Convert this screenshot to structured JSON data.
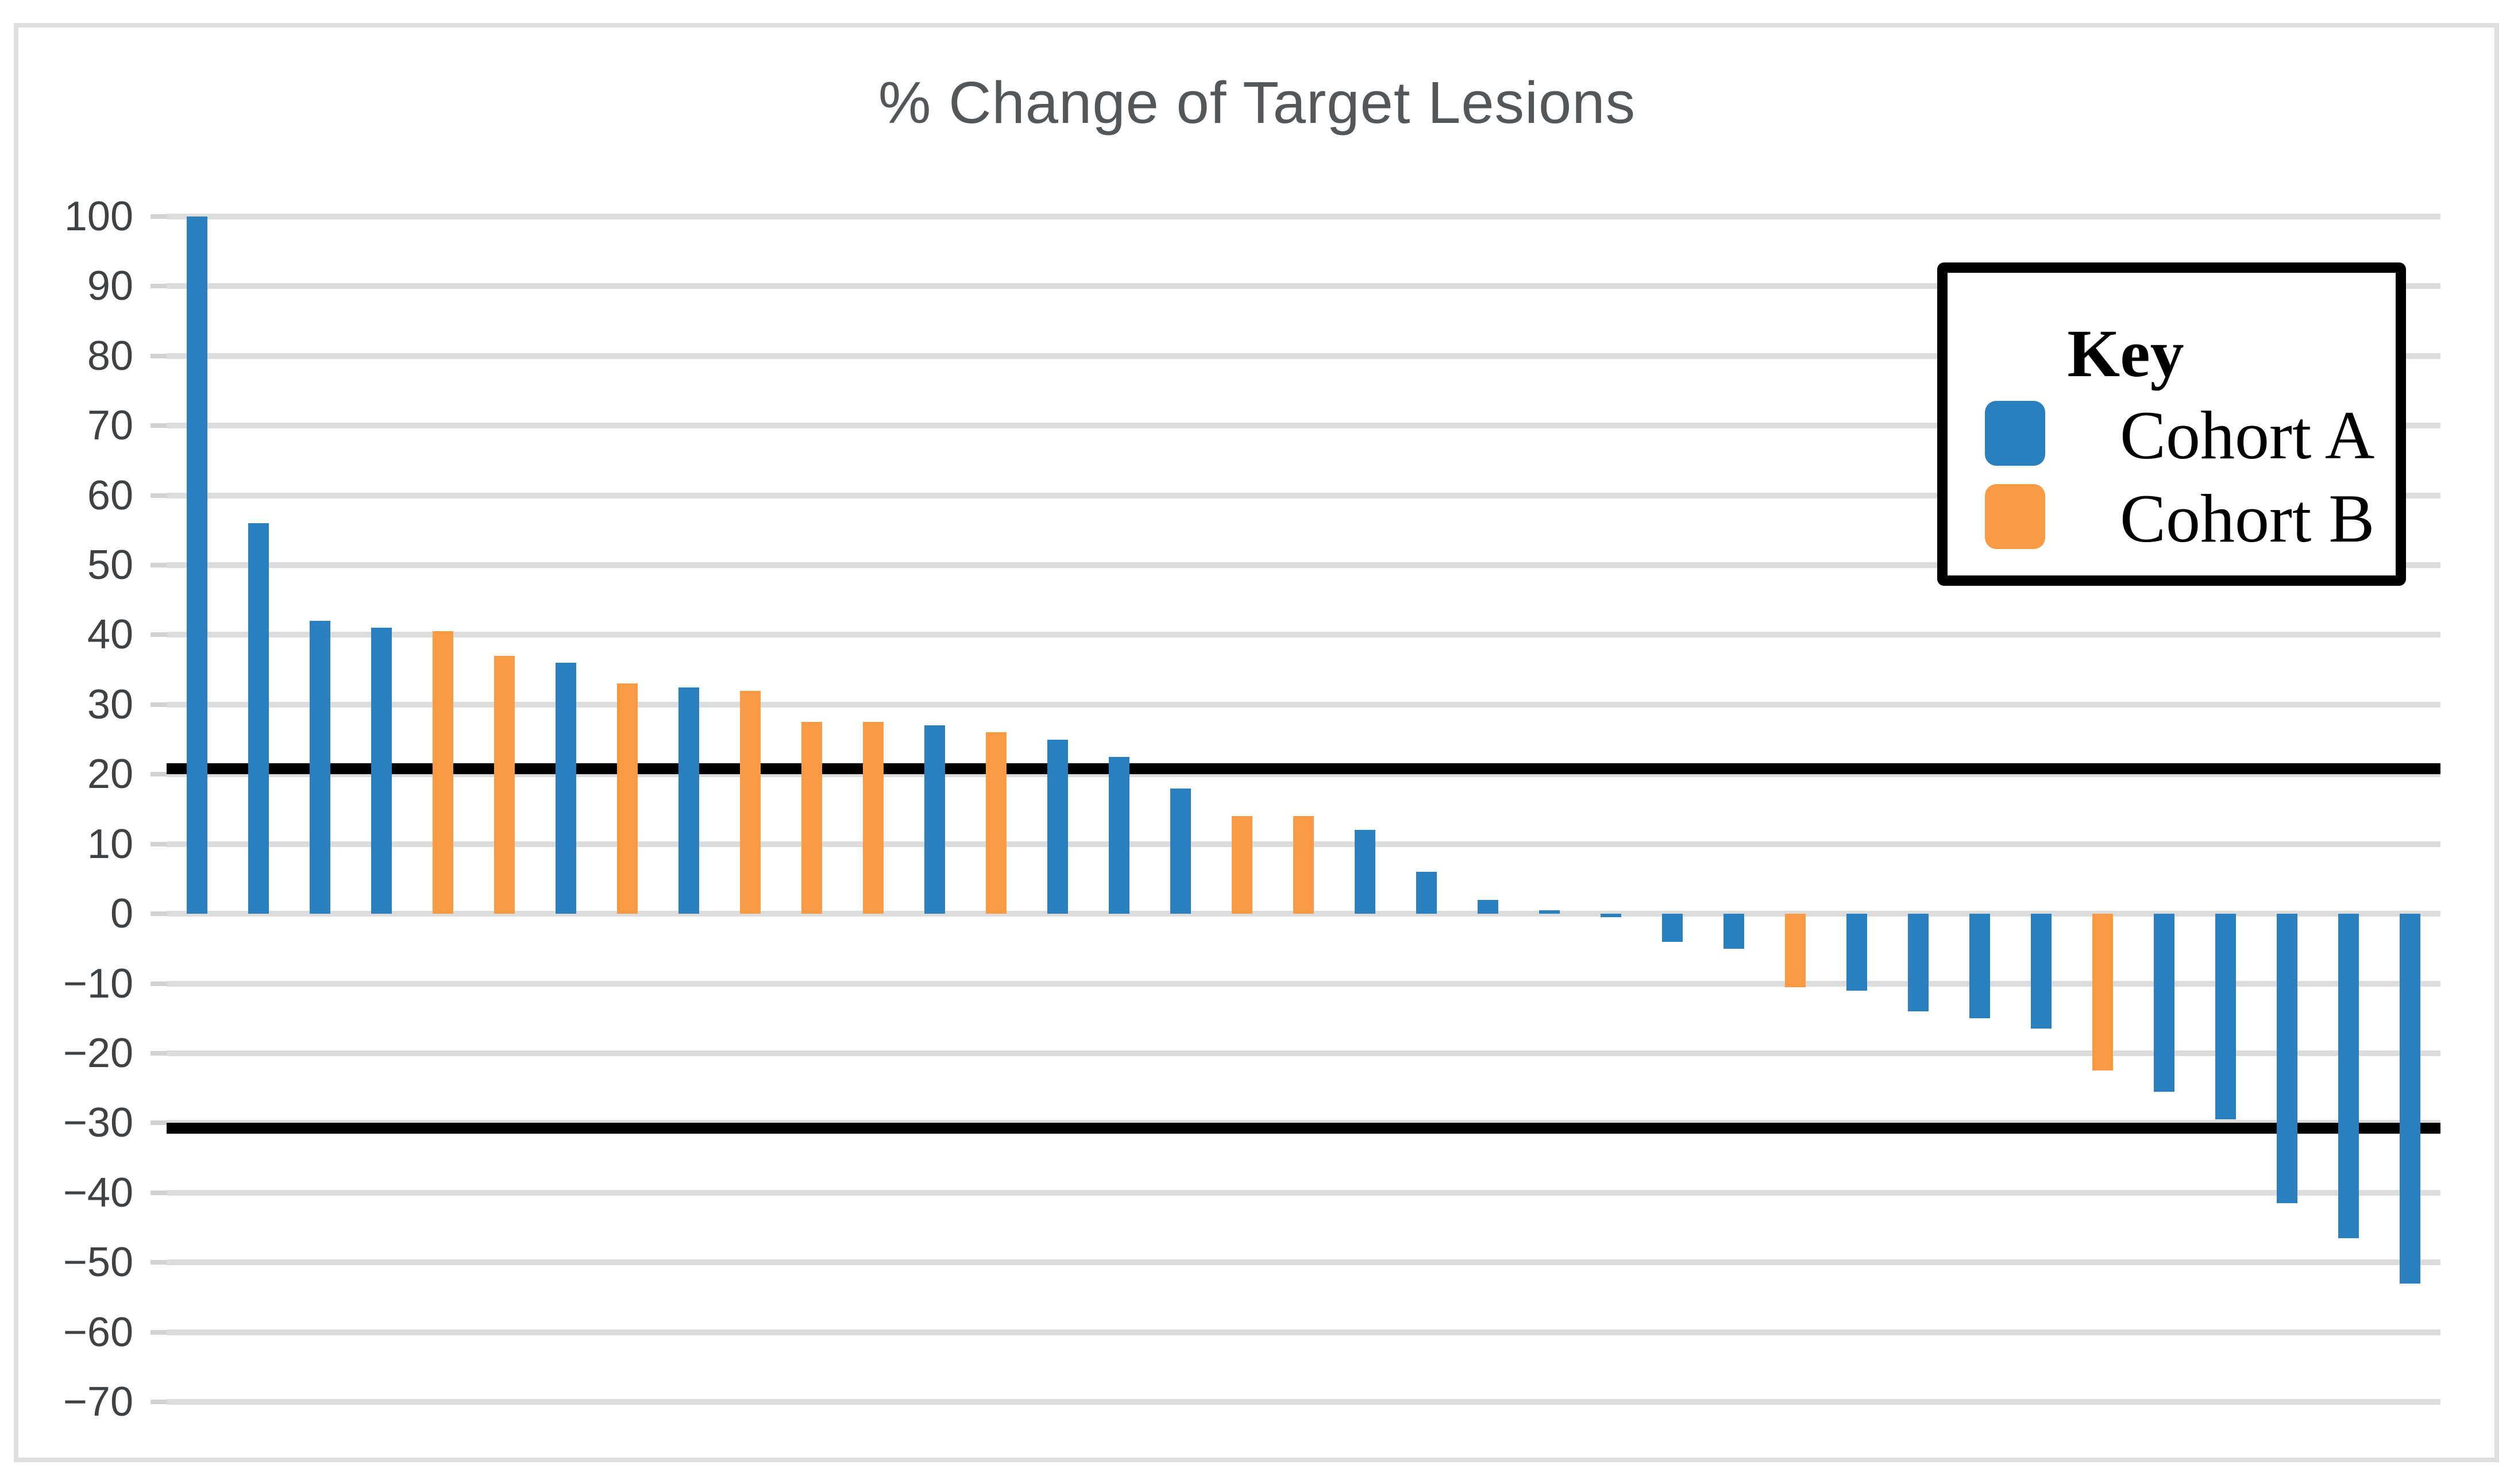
{
  "title": "% Change of Target Lesions",
  "legend": {
    "title": "Key",
    "entries": [
      {
        "label": "Cohort A",
        "cohort": "A",
        "color": "#2a7fbe"
      },
      {
        "label": "Cohort B",
        "cohort": "B",
        "color": "#fb9a44"
      }
    ]
  },
  "colors": {
    "cohort_a_blue": "#2a7fbe",
    "cohort_b_orange": "#fb9a44",
    "gridline": "#dcdcdc",
    "threshold_line": "#010101",
    "title_text": "#54575a",
    "axis_label_text": "#3f4245",
    "figure_border": "#dedede",
    "legend_border": "#000000",
    "background": "#ffffff"
  },
  "chart_data": {
    "type": "bar",
    "title": "% Change of Target Lesions",
    "xlabel": "",
    "ylabel": "",
    "ylim": [
      -70,
      100
    ],
    "ytick_step": 10,
    "ytick_labels": [
      "100",
      "90",
      "80",
      "70",
      "60",
      "50",
      "40",
      "30",
      "20",
      "10",
      "0",
      "−10",
      "−20",
      "−30",
      "−40",
      "−50",
      "−60",
      "−70"
    ],
    "grid": true,
    "legend_position": "upper right",
    "reference_lines": [
      {
        "value": 20,
        "color": "#010101"
      },
      {
        "value": -30,
        "color": "#010101"
      }
    ],
    "series": [
      {
        "name": "Cohort A",
        "color": "#2a7fbe"
      },
      {
        "name": "Cohort B",
        "color": "#fb9a44"
      }
    ],
    "bars": [
      {
        "value": 100,
        "cohort": "A"
      },
      {
        "value": 56,
        "cohort": "A"
      },
      {
        "value": 42,
        "cohort": "A"
      },
      {
        "value": 41,
        "cohort": "A"
      },
      {
        "value": 40.5,
        "cohort": "B"
      },
      {
        "value": 37,
        "cohort": "B"
      },
      {
        "value": 36,
        "cohort": "A"
      },
      {
        "value": 33,
        "cohort": "B"
      },
      {
        "value": 32.5,
        "cohort": "A"
      },
      {
        "value": 32,
        "cohort": "B"
      },
      {
        "value": 27.5,
        "cohort": "B"
      },
      {
        "value": 27.5,
        "cohort": "B"
      },
      {
        "value": 27,
        "cohort": "A"
      },
      {
        "value": 26,
        "cohort": "B"
      },
      {
        "value": 25,
        "cohort": "A"
      },
      {
        "value": 22.5,
        "cohort": "A"
      },
      {
        "value": 18,
        "cohort": "A"
      },
      {
        "value": 14,
        "cohort": "B"
      },
      {
        "value": 14,
        "cohort": "B"
      },
      {
        "value": 12,
        "cohort": "A"
      },
      {
        "value": 6,
        "cohort": "A"
      },
      {
        "value": 2,
        "cohort": "A"
      },
      {
        "value": 0.5,
        "cohort": "A"
      },
      {
        "value": -0.5,
        "cohort": "A"
      },
      {
        "value": -4,
        "cohort": "A"
      },
      {
        "value": -5,
        "cohort": "A"
      },
      {
        "value": -10.5,
        "cohort": "B"
      },
      {
        "value": -11,
        "cohort": "A"
      },
      {
        "value": -14,
        "cohort": "A"
      },
      {
        "value": -15,
        "cohort": "A"
      },
      {
        "value": -16.5,
        "cohort": "A"
      },
      {
        "value": -22.5,
        "cohort": "B"
      },
      {
        "value": -25.5,
        "cohort": "A"
      },
      {
        "value": -29.5,
        "cohort": "A"
      },
      {
        "value": -41.5,
        "cohort": "A"
      },
      {
        "value": -46.5,
        "cohort": "A"
      },
      {
        "value": -53,
        "cohort": "A"
      }
    ]
  }
}
